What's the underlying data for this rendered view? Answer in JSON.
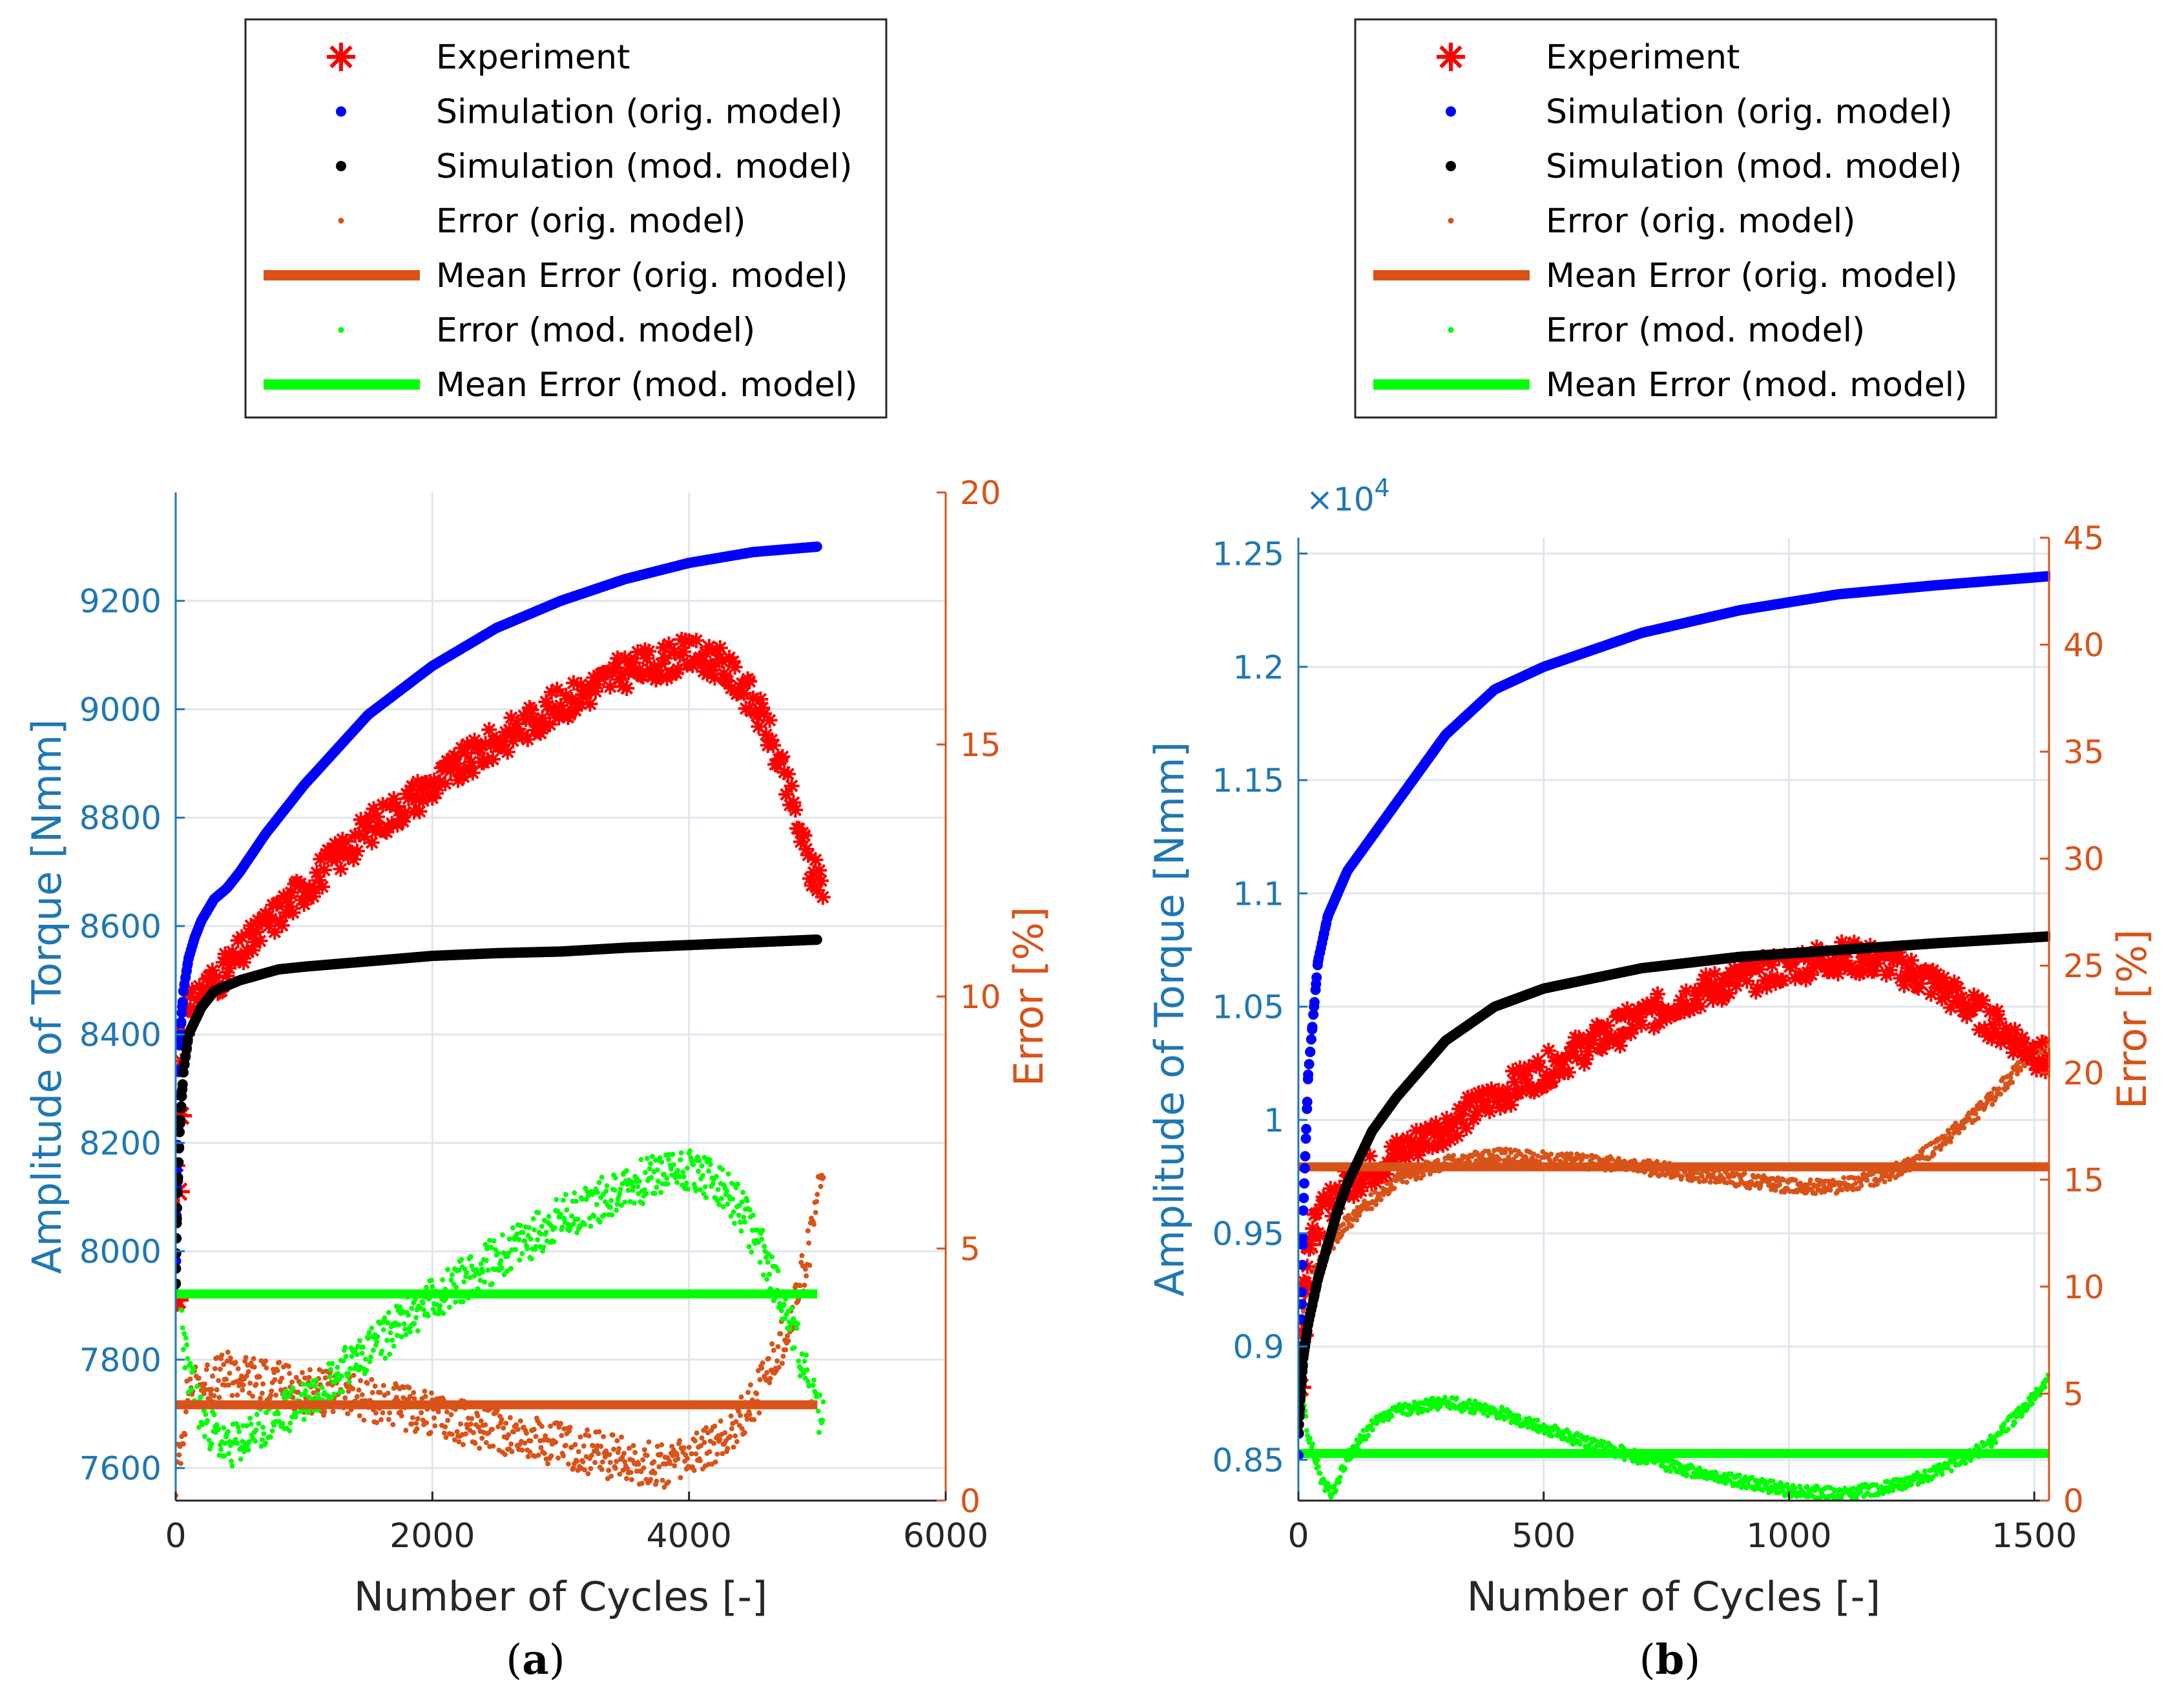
{
  "legend": [
    {
      "label": "Experiment",
      "marker": "star",
      "color": "#ff0000"
    },
    {
      "label": "Simulation (orig. model)",
      "marker": "dot",
      "color": "#0000ff"
    },
    {
      "label": "Simulation (mod. model)",
      "marker": "dot",
      "color": "#000000"
    },
    {
      "label": "Error (orig. model)",
      "marker": "smalldot",
      "color": "#d95319"
    },
    {
      "label": "Mean Error (orig. model)",
      "marker": "line",
      "color": "#d95319"
    },
    {
      "label": "Error (mod. model)",
      "marker": "smalldot",
      "color": "#00ff00"
    },
    {
      "label": "Mean Error (mod. model)",
      "marker": "line",
      "color": "#00ff00"
    }
  ],
  "colors": {
    "experiment": "#ff0000",
    "sim_orig": "#0000ff",
    "sim_mod": "#000000",
    "err_orig": "#d95319",
    "err_mod": "#00ff00",
    "axis_left": "#1f77b4",
    "axis_right": "#d95319",
    "grid": "#dfe6ee"
  },
  "chart_data": [
    {
      "type": "scatter",
      "caption": "a",
      "xlabel": "Number of Cycles [-]",
      "ylabel_left": "Amplitude of Torque [Nmm]",
      "ylabel_right": "Error [%]",
      "y_exponent": "",
      "xlim": [
        0,
        6000
      ],
      "ylim_left": [
        7540,
        9400
      ],
      "ylim_right": [
        0,
        20
      ],
      "xticks": [
        0,
        2000,
        4000,
        6000
      ],
      "xtick_labels": [
        "0",
        "2000",
        "4000",
        "6000"
      ],
      "yticks_left": [
        7600,
        7800,
        8000,
        8200,
        8400,
        8600,
        8800,
        9000,
        9200
      ],
      "ytick_labels_left": [
        "7600",
        "7800",
        "8000",
        "8200",
        "8400",
        "8600",
        "8800",
        "9000",
        "9200"
      ],
      "yticks_right": [
        0,
        5,
        10,
        15,
        20
      ],
      "ytick_labels_right": [
        "0",
        "5",
        "10",
        "15",
        "20"
      ],
      "series": [
        {
          "name": "Experiment",
          "axis": "left",
          "x": [
            0,
            10,
            25,
            50,
            100,
            200,
            400,
            700,
            1000,
            1500,
            2000,
            2500,
            3000,
            3500,
            4000,
            4200,
            4400,
            4600,
            4800,
            4950,
            5050
          ],
          "y": [
            7910,
            8110,
            8250,
            8400,
            8440,
            8480,
            8520,
            8600,
            8670,
            8780,
            8860,
            8940,
            9010,
            9070,
            9100,
            9090,
            9050,
            8970,
            8830,
            8700,
            8680
          ]
        },
        {
          "name": "Simulation (orig. model)",
          "axis": "left",
          "x": [
            0,
            10,
            30,
            60,
            100,
            150,
            200,
            300,
            400,
            500,
            700,
            1000,
            1500,
            2000,
            2500,
            3000,
            3500,
            4000,
            4500,
            5000
          ],
          "y": [
            7940,
            8150,
            8380,
            8480,
            8540,
            8580,
            8610,
            8650,
            8670,
            8700,
            8770,
            8860,
            8990,
            9080,
            9150,
            9200,
            9240,
            9270,
            9290,
            9300
          ]
        },
        {
          "name": "Simulation (mod. model)",
          "axis": "left",
          "x": [
            0,
            10,
            30,
            60,
            100,
            200,
            300,
            500,
            800,
            1000,
            1500,
            2000,
            2500,
            3000,
            3500,
            4000,
            4500,
            5000
          ],
          "y": [
            7940,
            8080,
            8220,
            8330,
            8400,
            8450,
            8480,
            8500,
            8520,
            8525,
            8535,
            8545,
            8550,
            8553,
            8560,
            8565,
            8570,
            8575
          ]
        },
        {
          "name": "Error (orig. model)",
          "axis": "right",
          "x": [
            0,
            100,
            200,
            400,
            700,
            1000,
            1500,
            2000,
            2500,
            3000,
            3500,
            3800,
            4000,
            4200,
            4400,
            4600,
            4800,
            4950,
            5050
          ],
          "y": [
            0.4,
            2.2,
            2.3,
            2.5,
            2.4,
            2.2,
            2.0,
            1.7,
            1.4,
            1.1,
            0.8,
            0.7,
            0.8,
            1.1,
            1.6,
            2.4,
            3.6,
            5.2,
            6.8
          ]
        },
        {
          "name": "Mean Error (orig. model)",
          "axis": "right",
          "x": [
            0,
            5000
          ],
          "y": [
            1.9,
            1.9
          ]
        },
        {
          "name": "Error (mod. model)",
          "axis": "right",
          "x": [
            0,
            100,
            200,
            400,
            700,
            1000,
            1500,
            2000,
            2500,
            3000,
            3500,
            3800,
            4000,
            4200,
            4400,
            4600,
            4800,
            4950,
            5050
          ],
          "y": [
            4.6,
            2.5,
            1.7,
            1.0,
            1.5,
            2.0,
            3.0,
            4.0,
            4.8,
            5.6,
            6.2,
            6.5,
            6.6,
            6.3,
            5.8,
            4.8,
            3.5,
            2.1,
            1.5
          ]
        },
        {
          "name": "Mean Error (mod. model)",
          "axis": "right",
          "x": [
            0,
            5000
          ],
          "y": [
            4.1,
            4.1
          ]
        }
      ]
    },
    {
      "type": "scatter",
      "caption": "b",
      "xlabel": "Number of Cycles [-]",
      "ylabel_left": "Amplitude of Torque [Nmm]",
      "ylabel_right": "Error [%]",
      "y_exponent": "×10^4",
      "xlim": [
        0,
        1530
      ],
      "ylim_left": [
        0.832,
        1.257
      ],
      "ylim_right": [
        0,
        45
      ],
      "xticks": [
        0,
        500,
        1000,
        1500
      ],
      "xtick_labels": [
        "0",
        "500",
        "1000",
        "1500"
      ],
      "yticks_left": [
        0.85,
        0.9,
        0.95,
        1.0,
        1.05,
        1.1,
        1.15,
        1.2,
        1.25
      ],
      "ytick_labels_left": [
        "0.85",
        "0.9",
        "0.95",
        "1",
        "1.05",
        "1.1",
        "1.15",
        "1.2",
        "1.25"
      ],
      "yticks_right": [
        0,
        5,
        10,
        15,
        20,
        25,
        30,
        35,
        40,
        45
      ],
      "ytick_labels_right": [
        "0",
        "5",
        "10",
        "15",
        "20",
        "25",
        "30",
        "35",
        "40",
        "45"
      ],
      "series": [
        {
          "name": "Experiment",
          "axis": "left",
          "x": [
            0,
            5,
            10,
            20,
            40,
            70,
            100,
            150,
            200,
            300,
            400,
            500,
            600,
            700,
            800,
            900,
            1000,
            1100,
            1200,
            1300,
            1400,
            1500,
            1530
          ],
          "y": [
            0.882,
            0.905,
            0.925,
            0.945,
            0.955,
            0.965,
            0.972,
            0.978,
            0.985,
            0.997,
            1.01,
            1.022,
            1.034,
            1.045,
            1.055,
            1.062,
            1.068,
            1.072,
            1.07,
            1.06,
            1.045,
            1.03,
            1.025
          ]
        },
        {
          "name": "Simulation (orig. model)",
          "axis": "left",
          "x": [
            0,
            5,
            10,
            20,
            40,
            60,
            80,
            100,
            150,
            200,
            300,
            400,
            500,
            700,
            900,
            1100,
            1300,
            1530
          ],
          "y": [
            0.852,
            0.9,
            0.96,
            1.02,
            1.07,
            1.09,
            1.1,
            1.11,
            1.125,
            1.14,
            1.17,
            1.19,
            1.2,
            1.215,
            1.225,
            1.232,
            1.236,
            1.24
          ]
        },
        {
          "name": "Simulation (mod. model)",
          "axis": "left",
          "x": [
            0,
            5,
            10,
            20,
            40,
            60,
            80,
            100,
            150,
            200,
            300,
            400,
            500,
            700,
            900,
            1100,
            1300,
            1530
          ],
          "y": [
            0.862,
            0.88,
            0.895,
            0.91,
            0.93,
            0.945,
            0.96,
            0.972,
            0.995,
            1.01,
            1.035,
            1.05,
            1.058,
            1.067,
            1.072,
            1.075,
            1.078,
            1.081
          ]
        },
        {
          "name": "Error (orig. model)",
          "axis": "right",
          "x": [
            0,
            20,
            50,
            100,
            150,
            200,
            300,
            400,
            500,
            600,
            700,
            800,
            900,
            1000,
            1100,
            1200,
            1300,
            1400,
            1500,
            1530
          ],
          "y": [
            7.0,
            10.0,
            11.5,
            13.0,
            14.0,
            15.0,
            15.8,
            16.1,
            16.0,
            15.8,
            15.6,
            15.3,
            15.0,
            14.7,
            14.7,
            15.2,
            16.5,
            18.5,
            21.0,
            21.5
          ]
        },
        {
          "name": "Mean Error (orig. model)",
          "axis": "right",
          "x": [
            0,
            1530
          ],
          "y": [
            15.6,
            15.6
          ]
        },
        {
          "name": "Error (mod. model)",
          "axis": "right",
          "x": [
            0,
            20,
            50,
            70,
            100,
            150,
            200,
            300,
            400,
            500,
            600,
            700,
            800,
            900,
            1000,
            1100,
            1200,
            1300,
            1400,
            1500,
            1530
          ],
          "y": [
            6.0,
            3.0,
            0.8,
            0.3,
            2.0,
            3.5,
            4.2,
            4.6,
            4.2,
            3.4,
            2.6,
            2.0,
            1.4,
            0.9,
            0.5,
            0.3,
            0.6,
            1.3,
            2.5,
            4.8,
            5.8
          ]
        },
        {
          "name": "Mean Error (mod. model)",
          "axis": "right",
          "x": [
            0,
            1530
          ],
          "y": [
            2.2,
            2.2
          ]
        }
      ]
    }
  ]
}
